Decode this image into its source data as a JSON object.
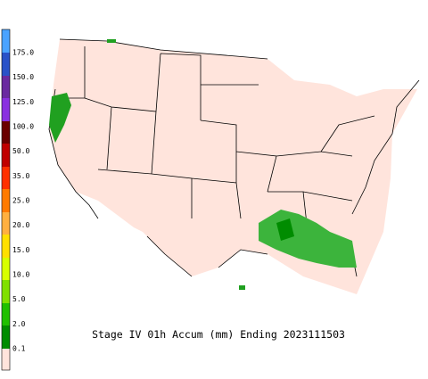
{
  "title": "Stage IV 01h Accum (mm) Ending 2023111503",
  "legend": {
    "labels": [
      "175.0",
      "150.0",
      "125.0",
      "100.0",
      "50.0",
      "35.0",
      "25.0",
      "20.0",
      "15.0",
      "10.0",
      "5.0",
      "2.0",
      "0.1"
    ]
  }
}
